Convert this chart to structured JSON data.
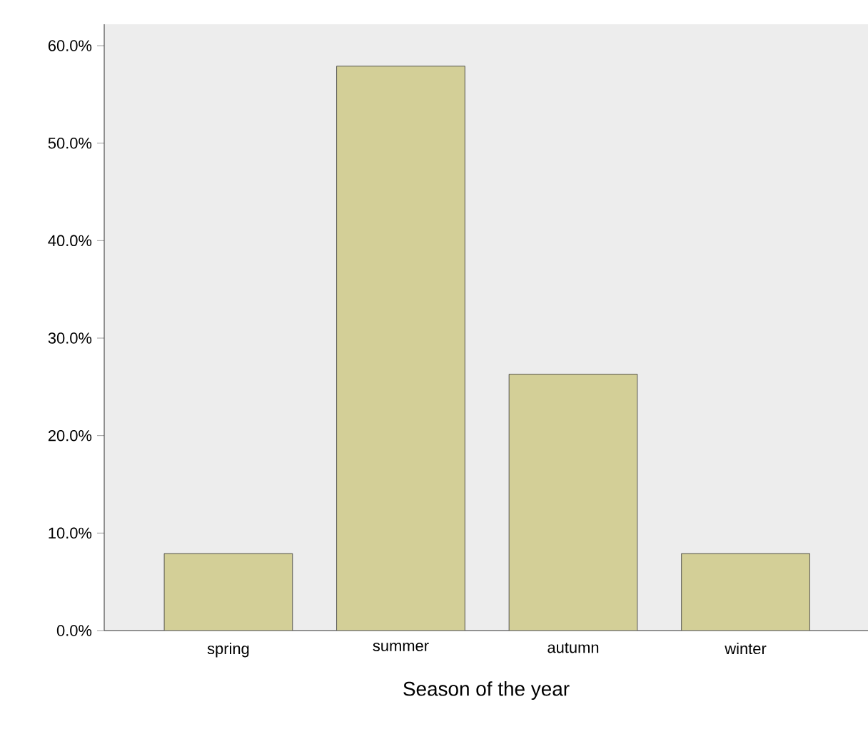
{
  "chart_data": {
    "type": "bar",
    "xlabel": "Season of the year",
    "categories": [
      "spring",
      "summer",
      "autumn",
      "winter"
    ],
    "values": [
      7.9,
      57.9,
      26.3,
      7.9
    ],
    "color": "#d3cf97",
    "ylim": [
      0,
      62.2
    ],
    "yticks": [
      {
        "value": 0,
        "label": "0.0%"
      },
      {
        "value": 10,
        "label": "10.0%"
      },
      {
        "value": 20,
        "label": "20.0%"
      },
      {
        "value": 30,
        "label": "30.0%"
      },
      {
        "value": 40,
        "label": "40.0%"
      },
      {
        "value": 50,
        "label": "50.0%"
      },
      {
        "value": 60,
        "label": "60.0%"
      }
    ],
    "grid": false
  }
}
